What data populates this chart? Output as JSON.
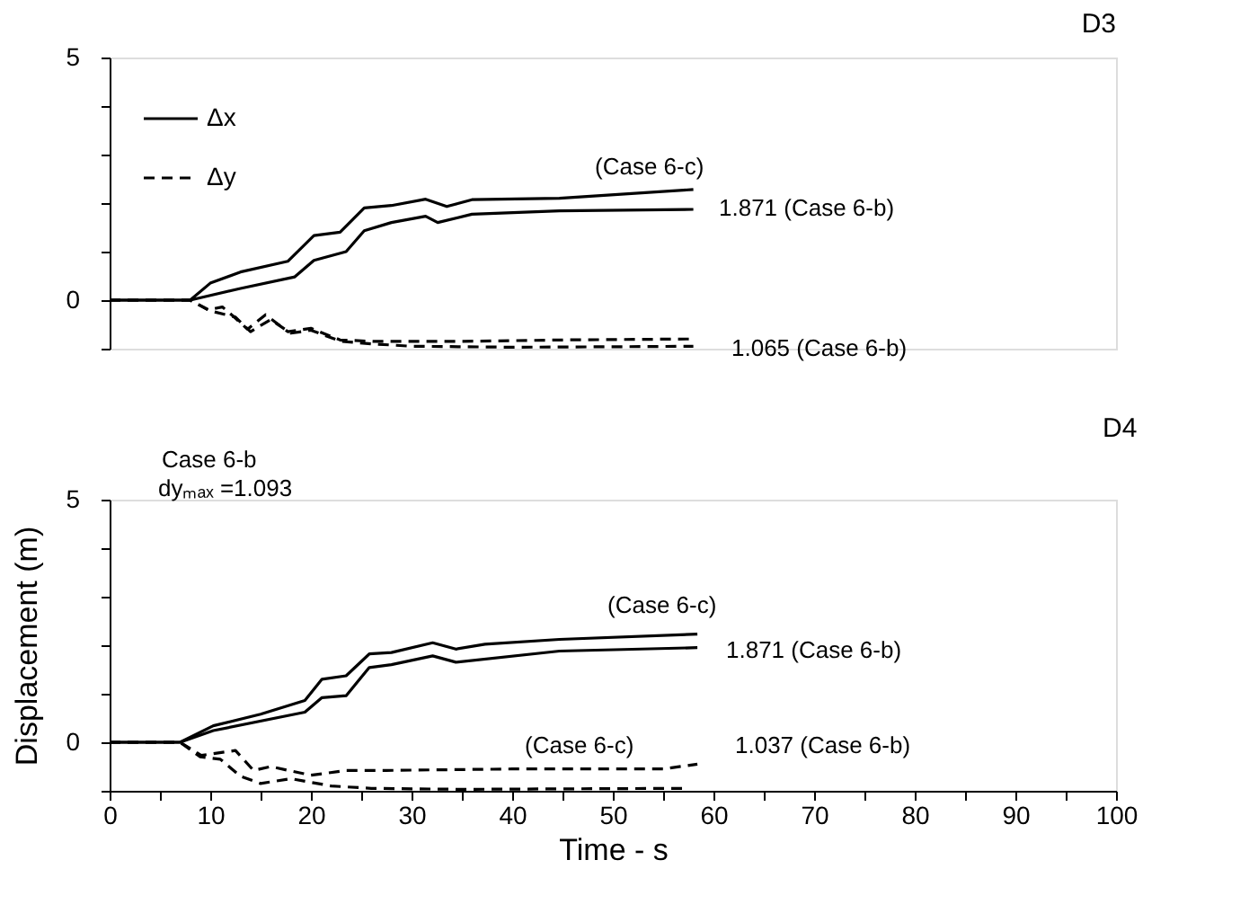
{
  "chart_data": [
    {
      "type": "line",
      "title": "D3",
      "xlim": [
        0,
        100
      ],
      "ylim": [
        -1,
        5
      ],
      "yticks": [
        {
          "value": -1,
          "label": null
        },
        0,
        {
          "value": 1,
          "label": null
        },
        {
          "value": 2,
          "label": null
        },
        {
          "value": 3,
          "label": null
        },
        {
          "value": 4,
          "label": null
        },
        5
      ],
      "tick_labels": "y",
      "grid": false,
      "legend": "top left",
      "series": [
        {
          "name": "Δx",
          "color": "#000000",
          "line_style": "solid",
          "x": [
            0,
            8,
            10,
            13,
            17.7,
            20.3,
            22.9,
            25.3,
            28,
            31.4,
            33.5,
            36,
            44.7,
            58
          ],
          "values": [
            0,
            0,
            0.35,
            0.58,
            0.8,
            1.33,
            1.4,
            1.9,
            1.95,
            2.08,
            1.93,
            2.07,
            2.1,
            2.28
          ]
        },
        {
          "color": "#000000",
          "line_style": "solid",
          "x": [
            0,
            8,
            13,
            18.4,
            20.3,
            23.5,
            25.3,
            28,
            31.4,
            32.6,
            36,
            44.7,
            58
          ],
          "values": [
            0,
            0,
            0.24,
            0.48,
            0.82,
            1.0,
            1.43,
            1.6,
            1.73,
            1.6,
            1.77,
            1.84,
            1.87
          ]
        },
        {
          "name": "Δy",
          "color": "#000000",
          "line_style": "dashed",
          "x": [
            0,
            8,
            9.8,
            11.2,
            12.5,
            13.7,
            15.5,
            17.7,
            20,
            22.9,
            26.3,
            35,
            45,
            58
          ],
          "values": [
            0,
            0,
            -0.2,
            -0.14,
            -0.37,
            -0.6,
            -0.3,
            -0.65,
            -0.58,
            -0.82,
            -0.85,
            -0.85,
            -0.82,
            -0.8
          ]
        },
        {
          "color": "#000000",
          "line_style": "dashed",
          "x": [
            0,
            8,
            10,
            12.5,
            14,
            16,
            18,
            20,
            23,
            26,
            30,
            40,
            50,
            58
          ],
          "values": [
            0,
            0,
            -0.22,
            -0.35,
            -0.65,
            -0.4,
            -0.68,
            -0.62,
            -0.85,
            -0.9,
            -0.95,
            -0.97,
            -0.96,
            -0.95
          ]
        }
      ],
      "annotations": [
        "(Case 6-c)",
        "1.871 (Case 6-b)",
        "1.065 (Case 6-b)"
      ]
    },
    {
      "type": "line",
      "title": "D4",
      "xlim": [
        0,
        100
      ],
      "ylim": [
        -1,
        5
      ],
      "xlabel": "Time - s",
      "ylabel": "Displacement (m)",
      "xticks": [
        0,
        {
          "value": 5,
          "label": null
        },
        10,
        {
          "value": 15,
          "label": null
        },
        20,
        {
          "value": 25,
          "label": null
        },
        30,
        {
          "value": 35,
          "label": null
        },
        40,
        {
          "value": 45,
          "label": null
        },
        50,
        {
          "value": 55,
          "label": null
        },
        60,
        {
          "value": 65,
          "label": null
        },
        70,
        {
          "value": 75,
          "label": null
        },
        80,
        {
          "value": 85,
          "label": null
        },
        90,
        {
          "value": 95,
          "label": null
        },
        100
      ],
      "yticks": [
        {
          "value": -1,
          "label": null
        },
        0,
        {
          "value": 1,
          "label": null
        },
        {
          "value": 2,
          "label": null
        },
        {
          "value": 3,
          "label": null
        },
        {
          "value": 4,
          "label": null
        },
        5
      ],
      "grid": false,
      "series": [
        {
          "color": "#000000",
          "line_style": "solid",
          "x": [
            0,
            7,
            10.3,
            15,
            19.4,
            21.1,
            23.5,
            25.8,
            28,
            32.1,
            34.4,
            37.3,
            44.7,
            58.4
          ],
          "values": [
            0,
            0,
            0.34,
            0.58,
            0.86,
            1.3,
            1.37,
            1.82,
            1.85,
            2.05,
            1.92,
            2.02,
            2.12,
            2.23
          ]
        },
        {
          "color": "#000000",
          "line_style": "solid",
          "x": [
            0,
            7,
            10.3,
            19.4,
            21.1,
            23.5,
            25.8,
            28,
            32.1,
            34.4,
            44.7,
            58.4
          ],
          "values": [
            0,
            0,
            0.24,
            0.62,
            0.92,
            0.96,
            1.54,
            1.6,
            1.78,
            1.65,
            1.88,
            1.95
          ]
        },
        {
          "color": "#000000",
          "line_style": "dashed",
          "x": [
            0,
            7,
            9.1,
            12.5,
            14.3,
            16,
            20,
            23.5,
            27.5,
            40,
            55,
            58.4
          ],
          "values": [
            0,
            0,
            -0.27,
            -0.17,
            -0.58,
            -0.5,
            -0.68,
            -0.58,
            -0.58,
            -0.55,
            -0.55,
            -0.45
          ]
        },
        {
          "color": "#000000",
          "line_style": "dashed",
          "x": [
            0,
            7,
            9,
            11,
            13,
            15,
            18,
            22,
            26,
            35,
            45,
            57
          ],
          "values": [
            0,
            0,
            -0.3,
            -0.35,
            -0.7,
            -0.85,
            -0.75,
            -0.9,
            -0.95,
            -0.97,
            -0.96,
            -0.95
          ]
        }
      ],
      "annotations": [
        "Case 6-b",
        "dyₘₐₓ =1.093",
        "(Case 6-c)",
        "1.871 (Case 6-b)",
        "(Case 6-c)",
        "1.037 (Case 6-b)"
      ]
    }
  ]
}
